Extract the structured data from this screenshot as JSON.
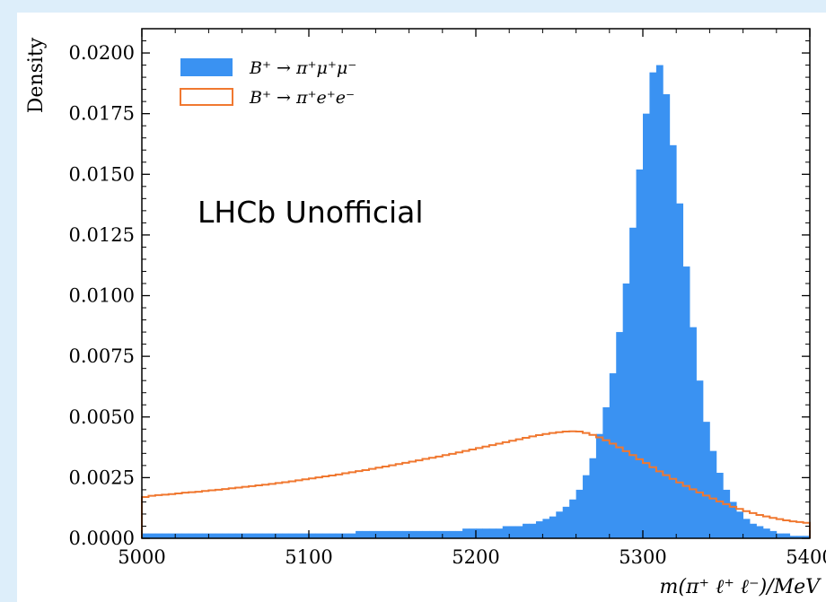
{
  "chart_data": {
    "type": "histogram",
    "xlabel": "m(π⁺ ℓ⁺ ℓ⁻)/MeV",
    "ylabel": "Density",
    "xlim": [
      5000,
      5400
    ],
    "ylim": [
      0,
      0.021
    ],
    "x_ticks": [
      "5000",
      "5100",
      "5200",
      "5300",
      "5400"
    ],
    "y_ticks": [
      "0.0000",
      "0.0025",
      "0.0050",
      "0.0075",
      "0.0100",
      "0.0125",
      "0.0150",
      "0.0175",
      "0.0200"
    ],
    "grid": false,
    "legend_position": "top-left",
    "annotation": "LHCb Unofficial",
    "bin_edges_start": 5000,
    "bin_width": 4,
    "series": [
      {
        "name": "B⁺ → π⁺μ⁺μ⁻",
        "style": "filled",
        "color": "#3a92f2",
        "values": [
          0.0002,
          0.0002,
          0.0002,
          0.0002,
          0.0002,
          0.0002,
          0.0002,
          0.0002,
          0.0002,
          0.0002,
          0.0002,
          0.0002,
          0.0002,
          0.0002,
          0.0002,
          0.0002,
          0.0002,
          0.0002,
          0.0002,
          0.0002,
          0.0002,
          0.0002,
          0.0002,
          0.0002,
          0.0002,
          0.0002,
          0.0002,
          0.0002,
          0.0002,
          0.0002,
          0.0002,
          0.0002,
          0.0003,
          0.0003,
          0.0003,
          0.0003,
          0.0003,
          0.0003,
          0.0003,
          0.0003,
          0.0003,
          0.0003,
          0.0003,
          0.0003,
          0.0003,
          0.0003,
          0.0003,
          0.0003,
          0.0004,
          0.0004,
          0.0004,
          0.0004,
          0.0004,
          0.0004,
          0.0005,
          0.0005,
          0.0005,
          0.0006,
          0.0006,
          0.0007,
          0.0008,
          0.0009,
          0.0011,
          0.0013,
          0.0016,
          0.002,
          0.0026,
          0.0033,
          0.0043,
          0.0054,
          0.0068,
          0.0085,
          0.0105,
          0.0128,
          0.0152,
          0.0175,
          0.0192,
          0.0195,
          0.0183,
          0.0162,
          0.0138,
          0.0112,
          0.0087,
          0.0065,
          0.0048,
          0.0036,
          0.0027,
          0.002,
          0.0015,
          0.0011,
          0.0008,
          0.0006,
          0.0005,
          0.0004,
          0.0003,
          0.0002,
          0.0002,
          0.0001,
          0.0001,
          0.0001
        ]
      },
      {
        "name": "B⁺ → π⁺e⁺e⁻",
        "style": "step",
        "color": "#f07830",
        "values": [
          0.0017,
          0.00175,
          0.00178,
          0.0018,
          0.00182,
          0.00185,
          0.00188,
          0.0019,
          0.00192,
          0.00195,
          0.00198,
          0.002,
          0.00203,
          0.00206,
          0.00209,
          0.00212,
          0.00215,
          0.00218,
          0.00221,
          0.00224,
          0.00228,
          0.00231,
          0.00235,
          0.00239,
          0.00243,
          0.00247,
          0.00251,
          0.00255,
          0.00259,
          0.00263,
          0.00268,
          0.00272,
          0.00277,
          0.00281,
          0.00286,
          0.00291,
          0.00296,
          0.00301,
          0.00306,
          0.00311,
          0.00316,
          0.00321,
          0.00327,
          0.00332,
          0.00337,
          0.00343,
          0.00348,
          0.00354,
          0.0036,
          0.00366,
          0.00372,
          0.00378,
          0.00384,
          0.0039,
          0.00396,
          0.00402,
          0.00408,
          0.00414,
          0.0042,
          0.00425,
          0.0043,
          0.00434,
          0.00437,
          0.0044,
          0.00441,
          0.0044,
          0.00434,
          0.00426,
          0.00416,
          0.00404,
          0.0039,
          0.00375,
          0.00359,
          0.00343,
          0.00326,
          0.0031,
          0.00293,
          0.00276,
          0.0026,
          0.00245,
          0.0023,
          0.00216,
          0.00202,
          0.00189,
          0.00176,
          0.00164,
          0.00152,
          0.00141,
          0.0013,
          0.00121,
          0.00112,
          0.00104,
          0.00096,
          0.0009,
          0.00084,
          0.00079,
          0.00074,
          0.0007,
          0.00067,
          0.00064
        ]
      }
    ]
  }
}
